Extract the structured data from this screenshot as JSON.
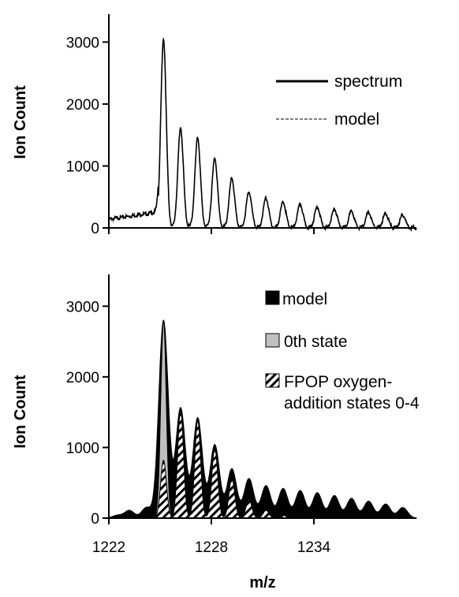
{
  "chart_data": [
    {
      "type": "line",
      "title": "",
      "xlabel": "",
      "ylabel": "Ion Count",
      "xlim": [
        1222,
        1240
      ],
      "ylim": [
        0,
        3000
      ],
      "yticks": [
        0,
        1000,
        2000,
        3000
      ],
      "xticks": [
        1222,
        1228,
        1234
      ],
      "xtick_labels_shown": false,
      "grid": false,
      "legend_position": "top-right",
      "baseline_level": 140,
      "series": [
        {
          "name": "spectrum",
          "style": "solid",
          "peaks": [
            {
              "x": 1225.2,
              "y": 3050
            },
            {
              "x": 1226.2,
              "y": 1620
            },
            {
              "x": 1227.2,
              "y": 1460
            },
            {
              "x": 1228.2,
              "y": 1130
            },
            {
              "x": 1229.2,
              "y": 800
            },
            {
              "x": 1230.2,
              "y": 580
            },
            {
              "x": 1231.2,
              "y": 480
            },
            {
              "x": 1232.2,
              "y": 420
            },
            {
              "x": 1233.2,
              "y": 380
            },
            {
              "x": 1234.2,
              "y": 340
            },
            {
              "x": 1235.2,
              "y": 300
            },
            {
              "x": 1236.2,
              "y": 270
            },
            {
              "x": 1237.2,
              "y": 250
            },
            {
              "x": 1238.2,
              "y": 230
            },
            {
              "x": 1239.2,
              "y": 210
            }
          ]
        },
        {
          "name": "model",
          "style": "dashed"
        }
      ]
    },
    {
      "type": "area",
      "title": "",
      "xlabel": "m/z",
      "ylabel": "Ion Count",
      "xlim": [
        1222,
        1240
      ],
      "ylim": [
        0,
        3000
      ],
      "yticks": [
        0,
        1000,
        2000,
        3000
      ],
      "xticks": [
        1222,
        1228,
        1234
      ],
      "xtick_labels_shown": true,
      "grid": false,
      "legend_position": "top-right",
      "series": [
        {
          "name": "model",
          "fill": "black",
          "peaks": [
            {
              "x": 1222.5,
              "y": 40
            },
            {
              "x": 1223.2,
              "y": 110
            },
            {
              "x": 1224.2,
              "y": 150
            },
            {
              "x": 1225.2,
              "y": 2800
            },
            {
              "x": 1226.2,
              "y": 1560
            },
            {
              "x": 1227.2,
              "y": 1420
            },
            {
              "x": 1228.2,
              "y": 1040
            },
            {
              "x": 1229.2,
              "y": 700
            },
            {
              "x": 1230.2,
              "y": 560
            },
            {
              "x": 1231.2,
              "y": 460
            },
            {
              "x": 1232.2,
              "y": 420
            },
            {
              "x": 1233.2,
              "y": 390
            },
            {
              "x": 1234.2,
              "y": 360
            },
            {
              "x": 1235.2,
              "y": 320
            },
            {
              "x": 1236.2,
              "y": 280
            },
            {
              "x": 1237.2,
              "y": 240
            },
            {
              "x": 1238.2,
              "y": 200
            },
            {
              "x": 1239.2,
              "y": 150
            }
          ]
        },
        {
          "name": "0th state",
          "fill": "#bfbfbf",
          "peaks": [
            {
              "x": 1225.2,
              "y": 2800
            },
            {
              "x": 1226.2,
              "y": 150
            },
            {
              "x": 1227.2,
              "y": 50
            }
          ]
        },
        {
          "name": "FPOP oxygen-addition states 0-4",
          "label_lines": [
            "FPOP oxygen-",
            "addition states 0-4"
          ],
          "fill": "hatched",
          "peaks": [
            {
              "x": 1225.2,
              "y": 820
            },
            {
              "x": 1226.2,
              "y": 1530
            },
            {
              "x": 1227.2,
              "y": 1380
            },
            {
              "x": 1228.2,
              "y": 990
            },
            {
              "x": 1229.2,
              "y": 560
            },
            {
              "x": 1230.2,
              "y": 260
            },
            {
              "x": 1231.2,
              "y": 110
            },
            {
              "x": 1232.2,
              "y": 40
            }
          ]
        }
      ]
    }
  ]
}
